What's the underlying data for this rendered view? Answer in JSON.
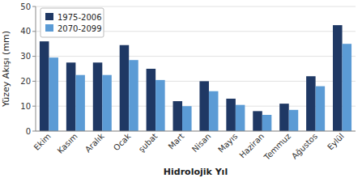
{
  "chart_data": {
    "type": "bar",
    "categories": [
      "Ekim",
      "Kasım",
      "Aralık",
      "Ocak",
      "şubat",
      "Mart",
      "Nisan",
      "Mayıs",
      "Haziran",
      "Temmuz",
      "Ağustos",
      "Eylül"
    ],
    "series": [
      {
        "name": "1975-2006",
        "color": "#1F3864",
        "values": [
          36,
          27.5,
          27.5,
          34.5,
          25,
          12,
          20,
          13,
          8,
          11,
          22,
          42.5
        ]
      },
      {
        "name": "2070-2099",
        "color": "#5B9BD5",
        "values": [
          29.5,
          22.5,
          22.5,
          28.5,
          20.5,
          10,
          16,
          10.5,
          6.5,
          8.5,
          18,
          35
        ]
      }
    ],
    "ylabel": "Yüzey Akışı (mm)",
    "xlabel": "Hidrolojik Yıl",
    "ylim": [
      0,
      50
    ],
    "yticks": [
      0,
      10,
      20,
      30,
      40,
      50
    ],
    "grid": true,
    "legend": "upper left"
  }
}
